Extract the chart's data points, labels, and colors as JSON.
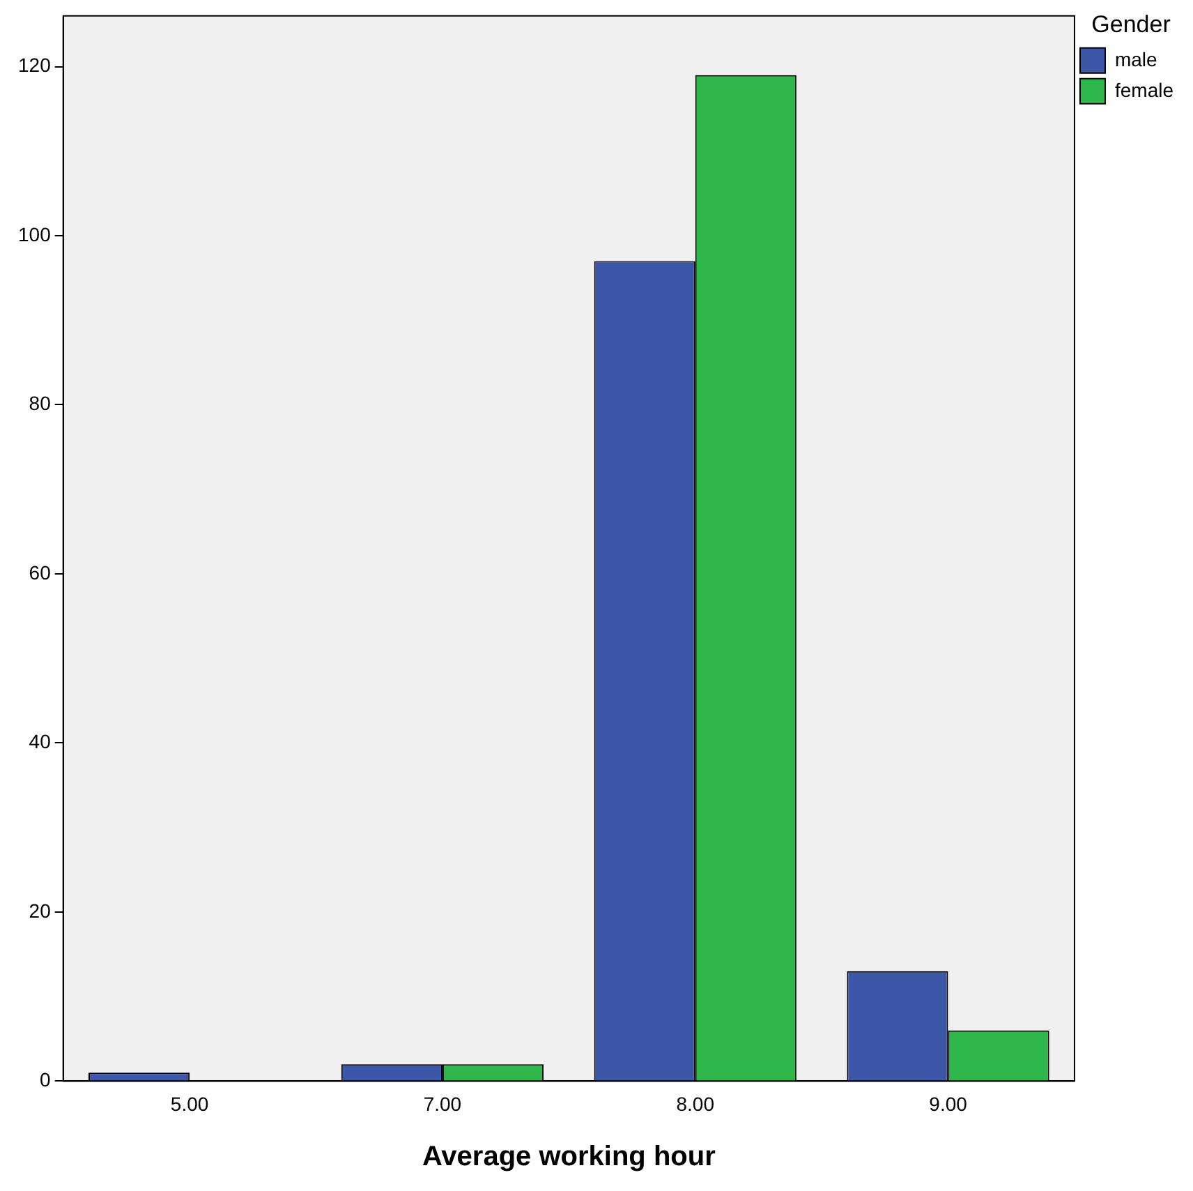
{
  "chart_data": {
    "type": "bar",
    "xlabel": "Average working hour",
    "legend_title": "Gender",
    "categories": [
      "5.00",
      "7.00",
      "8.00",
      "9.00"
    ],
    "series": [
      {
        "name": "male",
        "color": "#3c56a8",
        "values": [
          1,
          2,
          97,
          13
        ]
      },
      {
        "name": "female",
        "color": "#2eb84b",
        "values": [
          null,
          2,
          119,
          6
        ]
      }
    ],
    "ylim": [
      0,
      126
    ],
    "yticks": [
      0,
      20,
      40,
      60,
      80,
      100,
      120
    ],
    "grid": false,
    "legend": "right"
  }
}
